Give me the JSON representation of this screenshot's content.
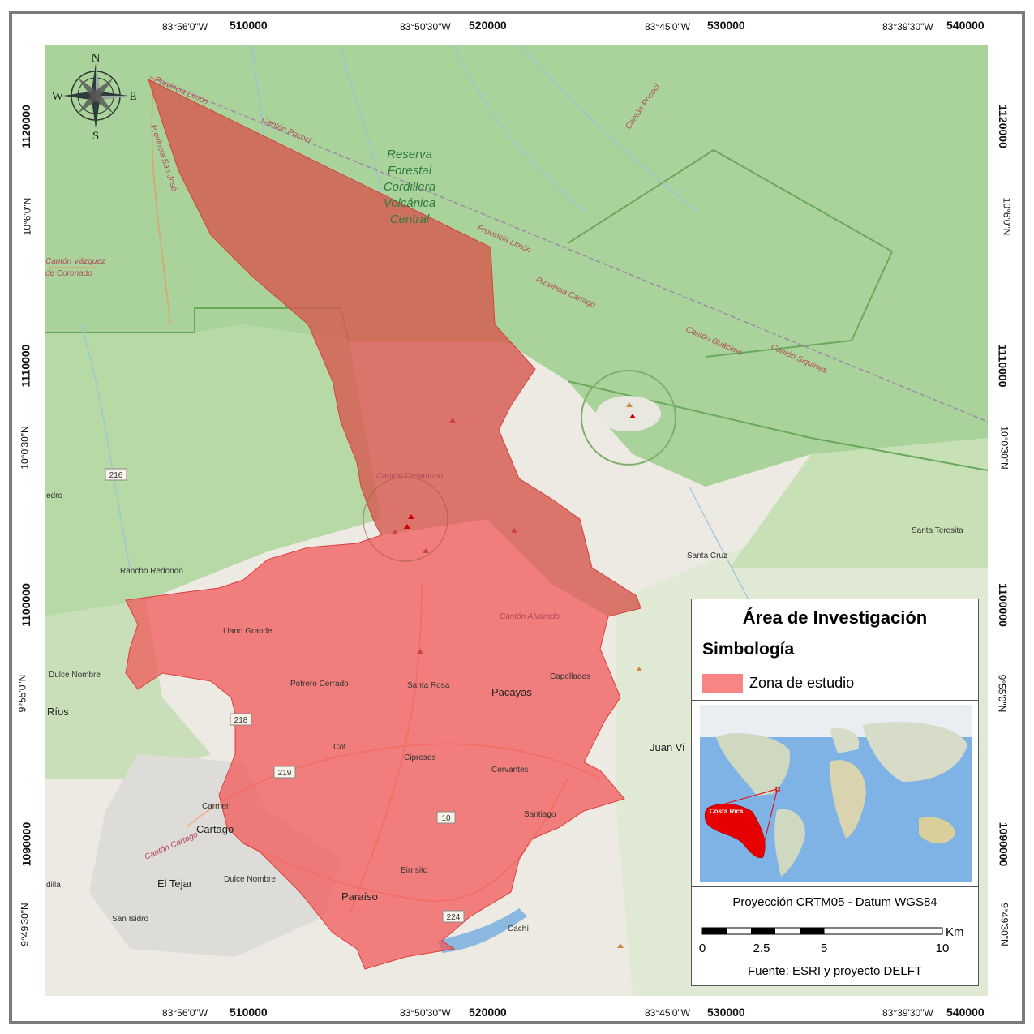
{
  "top_lon_labels": [
    "83°56'0\"W",
    "83°50'30\"W",
    "83°45'0\"W",
    "83°39'30\"W"
  ],
  "top_easting_labels": [
    "510000",
    "520000",
    "530000",
    "540000"
  ],
  "left_northing_labels": [
    "1120000",
    "1110000",
    "1100000",
    "1090000"
  ],
  "left_lat_labels": [
    "10°6'0\"N",
    "10°0'30\"N",
    "9°55'0\"N",
    "9°49'30\"N"
  ],
  "compass": {
    "n": "N",
    "s": "S",
    "e": "E",
    "w": "W"
  },
  "places": {
    "rancho_redondo": "Rancho Redondo",
    "llano_grande": "Llano Grande",
    "dulce_nombre_w": "Dulce Nombre",
    "rios": "Ríos",
    "potrero_cerrado": "Potrero Cerrado",
    "santa_rosa": "Santa Rosa",
    "pacayas": "Pacayas",
    "capellades": "Capellades",
    "cot": "Cot",
    "cipreses": "Cipreses",
    "cervantes": "Cervantes",
    "santiago": "Santiago",
    "carmen": "Carmen",
    "cartago": "Cartago",
    "el_tejar": "El Tejar",
    "dulce_nombre": "Dulce Nombre",
    "paraiso": "Paraíso",
    "birrisito": "Birrisito",
    "san_isidro": "San Isidro",
    "cachi": "Cachí",
    "juan_vinas": "Juan Vi",
    "santa_cruz": "Santa Cruz",
    "santa_teresita": "Santa Teresita",
    "edro": "edro",
    "dilla": "dilla"
  },
  "roads": {
    "r216": "216",
    "r218": "218",
    "r219": "219",
    "r10": "10",
    "r224": "224"
  },
  "cantons": {
    "provincia_limon_1": "Provincia Limón",
    "canton_pococi_1": "Cantón Pococí",
    "provincia_sanjose": "Provincia San José",
    "canton_vazquez_1": "Cantón Vázquez",
    "canton_vazquez_2": "de Coronado",
    "provincia_limon_2": "Provincia Limón",
    "provincia_cartago": "Provincia Cartago",
    "canton_guacimo": "Cantón Guácimo",
    "canton_siquirres": "Cantón Siquirres",
    "canton_pococi_2": "Cantón Pococí",
    "canton_oreamuno": "Cantón Oreamuno",
    "canton_alvarado": "Cantón Alvarado",
    "canton_cartago": "Cantón Cartago"
  },
  "reserve": [
    "Reserva",
    "Forestal",
    "Cordillera",
    "Volcánica",
    "Central"
  ],
  "legend": {
    "title": "Área de Investigación",
    "subtitle": "Simbología",
    "zone_label": "Zona de estudio",
    "inset_label": "Costa Rica",
    "projection": "Proyección CRTM05 - Datum WGS84",
    "scale_unit": "Km",
    "scale_ticks": [
      "0",
      "2.5",
      "5",
      "10"
    ],
    "source": "Fuente: ESRI y proyecto DELFT"
  },
  "colors": {
    "study_zone": "#f98484",
    "forest": "#a9d39a",
    "water": "#8ab8e0"
  }
}
